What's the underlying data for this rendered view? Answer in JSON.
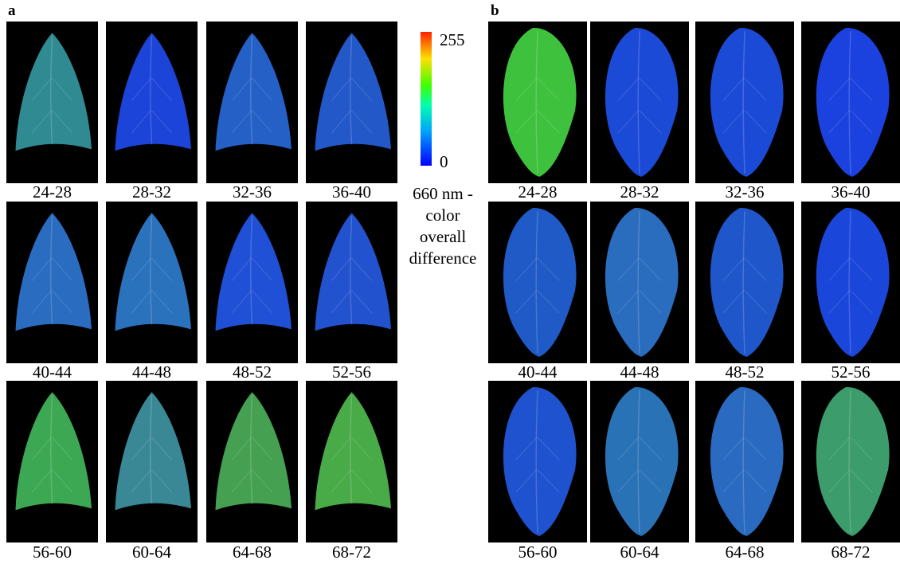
{
  "panels": [
    {
      "label": "a",
      "tiles": [
        "24-28",
        "28-32",
        "32-36",
        "36-40",
        "40-44",
        "44-48",
        "48-52",
        "52-56",
        "56-60",
        "60-64",
        "64-68",
        "68-72"
      ]
    },
    {
      "label": "b",
      "tiles": [
        "24-28",
        "28-32",
        "32-36",
        "36-40",
        "40-44",
        "44-48",
        "48-52",
        "52-56",
        "56-60",
        "60-64",
        "64-68",
        "68-72"
      ]
    }
  ],
  "colorbar": {
    "max": 255,
    "min": 0,
    "caption": [
      "660 nm -",
      "color",
      "overall",
      "difference"
    ]
  }
}
